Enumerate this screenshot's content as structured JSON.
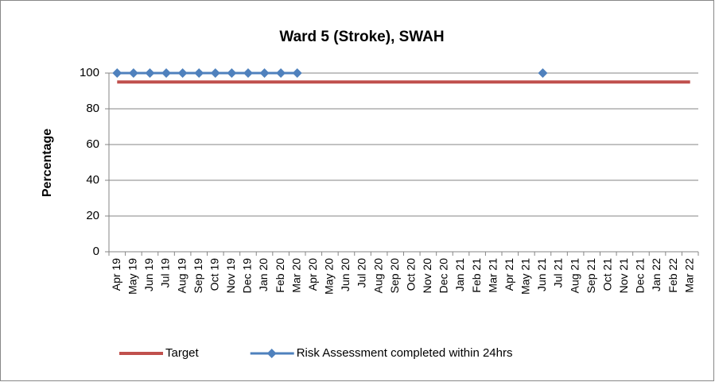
{
  "chart_data": {
    "type": "line",
    "title": "Ward 5 (Stroke), SWAH",
    "y_label": "Percentage",
    "categories": [
      "Apr 19",
      "May 19",
      "Jun 19",
      "Jul 19",
      "Aug 19",
      "Sep 19",
      "Oct 19",
      "Nov 19",
      "Dec 19",
      "Jan 20",
      "Feb 20",
      "Mar 20",
      "Apr 20",
      "May 20",
      "Jun 20",
      "Jul 20",
      "Aug 20",
      "Sep 20",
      "Oct 20",
      "Nov 20",
      "Dec 20",
      "Jan 21",
      "Feb 21",
      "Mar 21",
      "Apr 21",
      "May 21",
      "Jun 21",
      "Jul 21",
      "Aug 21",
      "Sep 21",
      "Oct 21",
      "Nov 21",
      "Dec 21",
      "Jan 22",
      "Feb 22",
      "Mar 22"
    ],
    "series": [
      {
        "name": "Target",
        "color": "#c0504d",
        "marker": false,
        "values": [
          95,
          95,
          95,
          95,
          95,
          95,
          95,
          95,
          95,
          95,
          95,
          95,
          95,
          95,
          95,
          95,
          95,
          95,
          95,
          95,
          95,
          95,
          95,
          95,
          95,
          95,
          95,
          95,
          95,
          95,
          95,
          95,
          95,
          95,
          95,
          95
        ]
      },
      {
        "name": "Risk Assessment completed within 24hrs",
        "color": "#4f81bd",
        "marker": true,
        "values": [
          100,
          100,
          100,
          100,
          100,
          100,
          100,
          100,
          100,
          100,
          100,
          100,
          null,
          null,
          null,
          null,
          null,
          null,
          null,
          null,
          null,
          null,
          null,
          null,
          null,
          null,
          100,
          null,
          null,
          null,
          null,
          null,
          null,
          null,
          null,
          null
        ]
      }
    ],
    "ylim": [
      0,
      100
    ],
    "yticks": [
      0,
      20,
      40,
      60,
      80,
      100
    ],
    "grid": true,
    "legend": "bottom"
  }
}
